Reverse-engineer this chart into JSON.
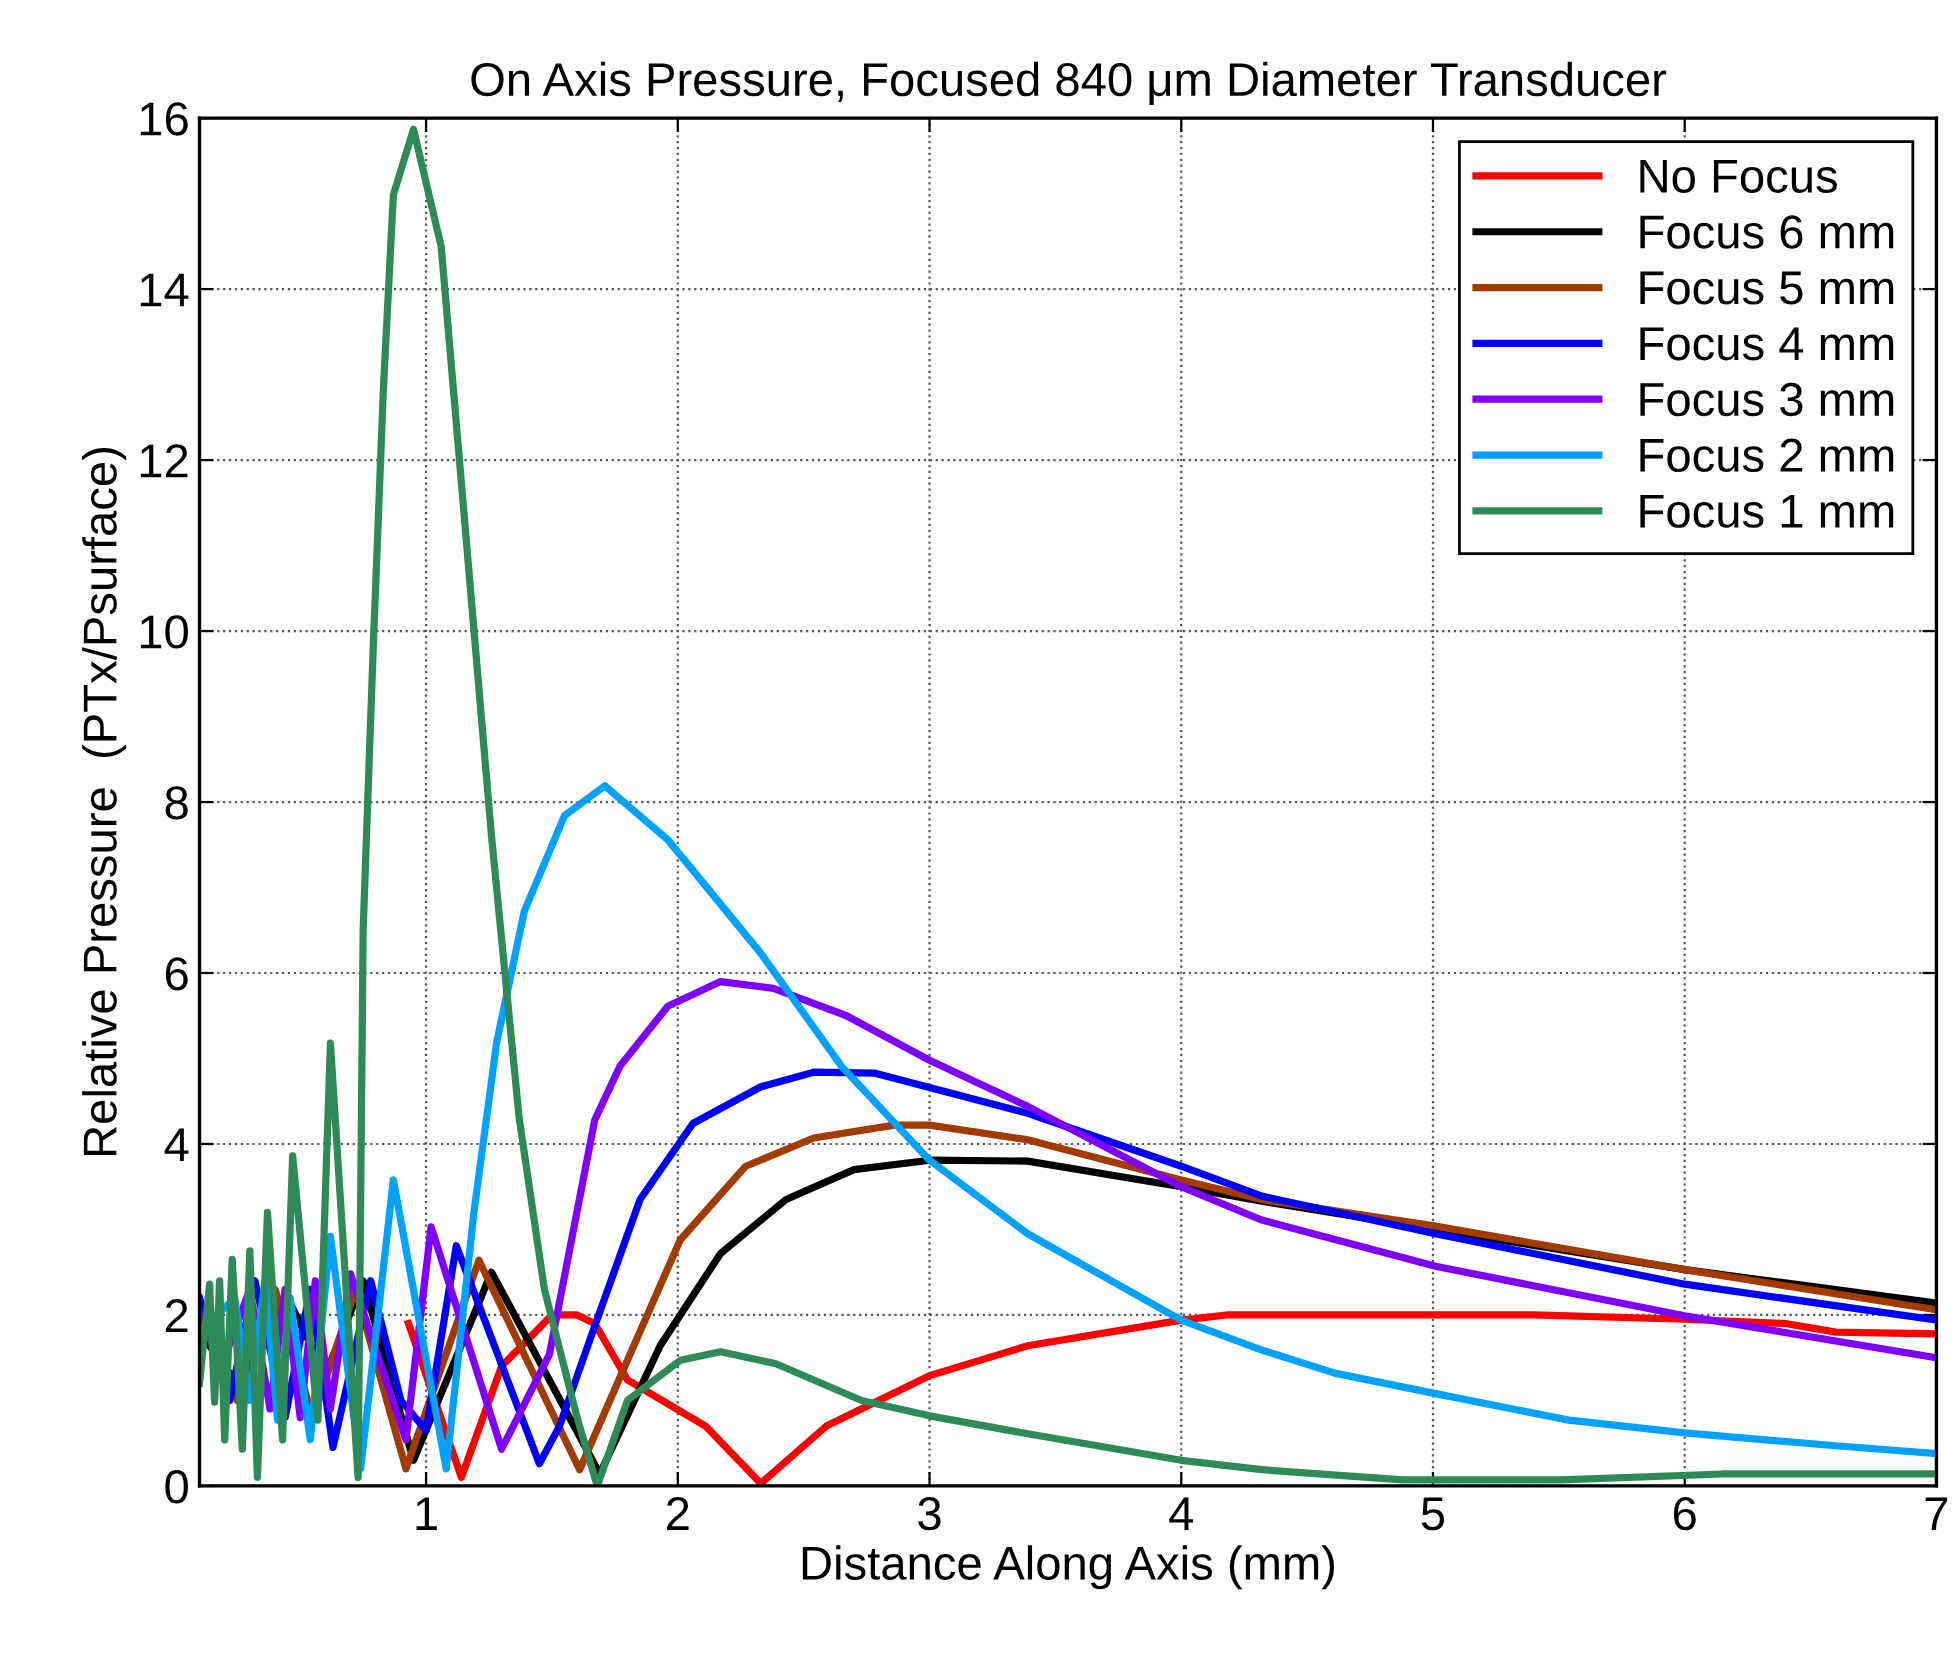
{
  "chart_data": {
    "type": "line",
    "title": "On Axis Pressure, Focused 840 μm Diameter Transducer",
    "xlabel": "Distance Along Axis (mm)",
    "ylabel": "Relative Pressure  (PTx/Psurface)",
    "xlim": [
      0.1,
      7
    ],
    "xticks": [
      1,
      2,
      3,
      4,
      5,
      6,
      7
    ],
    "ylim": [
      0,
      16
    ],
    "yticks": [
      0,
      2,
      4,
      6,
      8,
      10,
      12,
      14,
      16
    ],
    "grid": true,
    "legend": "top right",
    "line_style": "solid",
    "marker": "none",
    "series": [
      {
        "name": "No Focus",
        "color": "#ff0000",
        "x": [
          0.93,
          1.14,
          1.3,
          1.5,
          1.6,
          1.67,
          1.8,
          2.11,
          2.33,
          2.59,
          3.0,
          3.39,
          4.0,
          4.18,
          5.4,
          6.0,
          6.4,
          6.6,
          7.0
        ],
        "values": [
          1.9,
          0.1,
          1.4,
          2.0,
          2.0,
          1.9,
          1.24,
          0.7,
          0.03,
          0.7,
          1.29,
          1.64,
          1.94,
          2.0,
          2.0,
          1.95,
          1.9,
          1.8,
          1.78
        ]
      },
      {
        "name": "Focus 6 mm",
        "color": "#000000",
        "x": [
          0.1,
          0.25,
          0.45,
          0.6,
          0.75,
          0.95,
          1.26,
          1.69,
          1.93,
          2.17,
          2.43,
          2.7,
          3.0,
          3.39,
          4.0,
          4.32,
          5.01,
          6.0,
          7.0
        ],
        "values": [
          1.8,
          1.2,
          2.2,
          1.3,
          2.4,
          0.3,
          2.5,
          0.14,
          1.64,
          2.72,
          3.35,
          3.7,
          3.81,
          3.8,
          3.5,
          3.33,
          3.0,
          2.53,
          2.14
        ]
      },
      {
        "name": "Focus 5 mm",
        "color": "#a33b00",
        "x": [
          0.1,
          0.25,
          0.4,
          0.55,
          0.72,
          0.92,
          1.21,
          1.61,
          1.8,
          2.01,
          2.27,
          2.54,
          2.86,
          3.0,
          3.39,
          4.0,
          4.32,
          5.01,
          6.0,
          7.0
        ],
        "values": [
          2.0,
          1.0,
          2.3,
          0.8,
          2.3,
          0.2,
          2.64,
          0.19,
          1.47,
          2.88,
          3.74,
          4.07,
          4.22,
          4.22,
          4.05,
          3.58,
          3.35,
          3.04,
          2.53,
          2.06
        ]
      },
      {
        "name": "Focus 4 mm",
        "color": "#0000ff",
        "x": [
          0.1,
          0.22,
          0.32,
          0.44,
          0.54,
          0.63,
          0.78,
          0.9,
          1.0,
          1.12,
          1.45,
          1.53,
          1.67,
          1.85,
          2.06,
          2.33,
          2.54,
          2.78,
          3.0,
          3.39,
          4.0,
          4.32,
          5.01,
          6.0,
          7.0
        ],
        "values": [
          2.2,
          1.0,
          2.4,
          0.8,
          2.3,
          0.45,
          2.4,
          1.0,
          0.65,
          2.81,
          0.26,
          0.7,
          1.87,
          3.35,
          4.24,
          4.67,
          4.84,
          4.83,
          4.66,
          4.36,
          3.74,
          3.39,
          2.95,
          2.36,
          1.94
        ]
      },
      {
        "name": "Focus 3 mm",
        "color": "#8000ff",
        "x": [
          0.1,
          0.2,
          0.3,
          0.38,
          0.44,
          0.5,
          0.56,
          0.62,
          0.7,
          0.92,
          1.02,
          1.3,
          1.49,
          1.67,
          1.77,
          1.96,
          2.17,
          2.38,
          2.67,
          3.0,
          3.39,
          4.0,
          4.32,
          5.01,
          6.0,
          7.0
        ],
        "values": [
          2.0,
          1.5,
          2.3,
          0.9,
          2.3,
          0.8,
          2.4,
          0.9,
          2.48,
          0.54,
          3.03,
          0.43,
          1.54,
          4.28,
          4.91,
          5.61,
          5.9,
          5.82,
          5.5,
          4.98,
          4.44,
          3.5,
          3.11,
          2.57,
          1.99,
          1.5
        ]
      },
      {
        "name": "Focus 2 mm",
        "color": "#00a2ff",
        "x": [
          0.1,
          0.24,
          0.3,
          0.36,
          0.41,
          0.46,
          0.54,
          0.62,
          0.74,
          0.87,
          1.08,
          1.19,
          1.28,
          1.39,
          1.55,
          1.71,
          1.96,
          2.33,
          2.65,
          3.0,
          3.39,
          4.0,
          4.32,
          4.61,
          5.01,
          5.54,
          6.0,
          6.6,
          7.0
        ],
        "values": [
          1.8,
          2.2,
          1.0,
          2.4,
          0.77,
          2.2,
          0.54,
          2.92,
          0.2,
          3.58,
          0.2,
          3.2,
          5.18,
          6.72,
          7.84,
          8.19,
          7.56,
          6.23,
          4.91,
          3.81,
          2.95,
          1.94,
          1.59,
          1.32,
          1.08,
          0.77,
          0.62,
          0.47,
          0.38
        ]
      },
      {
        "name": "Focus 1 mm",
        "color": "#2e8b57",
        "x": [
          0.1,
          0.14,
          0.16,
          0.18,
          0.2,
          0.23,
          0.27,
          0.3,
          0.33,
          0.37,
          0.43,
          0.47,
          0.57,
          0.62,
          0.73,
          0.75,
          0.79,
          0.83,
          0.87,
          0.95,
          1.06,
          1.15,
          1.26,
          1.37,
          1.47,
          1.6,
          1.68,
          1.8,
          2.01,
          2.17,
          2.39,
          2.73,
          3.0,
          3.39,
          4.0,
          4.32,
          4.88,
          5.51,
          6.15,
          7.0
        ],
        "values": [
          1.2,
          2.36,
          0.98,
          2.4,
          0.54,
          2.65,
          0.43,
          2.75,
          0.1,
          3.2,
          0.54,
          3.86,
          0.77,
          5.18,
          0.1,
          6.5,
          9.8,
          12.8,
          15.1,
          15.87,
          14.5,
          11.4,
          7.6,
          4.3,
          2.3,
          0.8,
          0.0,
          1.0,
          1.47,
          1.57,
          1.43,
          1.0,
          0.82,
          0.61,
          0.3,
          0.19,
          0.07,
          0.07,
          0.14,
          0.14
        ]
      }
    ]
  }
}
